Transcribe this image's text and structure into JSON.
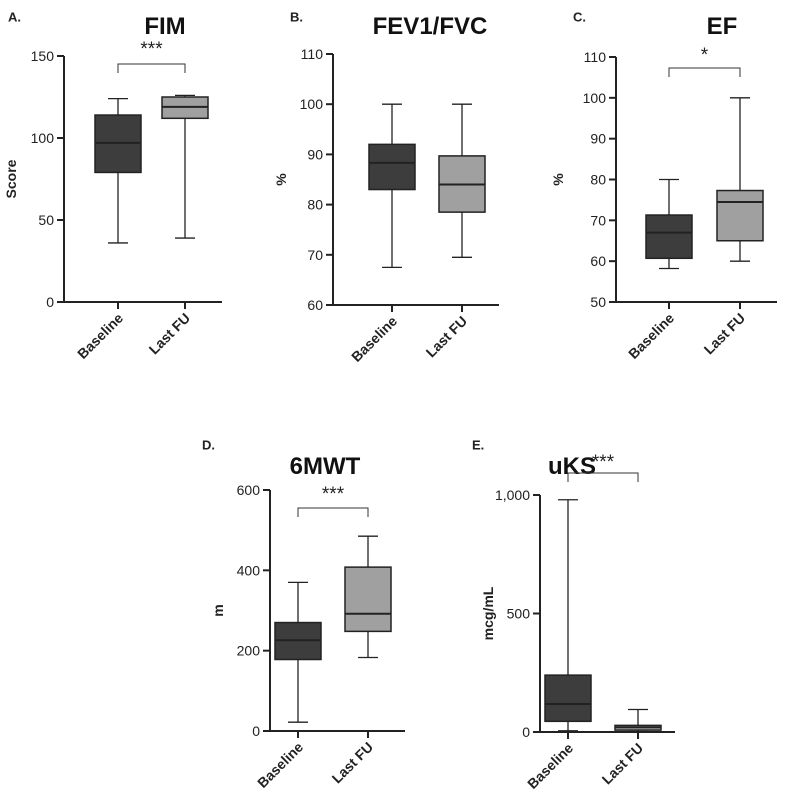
{
  "chart_data": [
    {
      "type": "box",
      "panel_label": "A.",
      "title": "FIM",
      "ylabel": "Score",
      "ylim": [
        0,
        150
      ],
      "yticks": [
        0,
        50,
        100,
        150
      ],
      "ytick_labels": [
        "0",
        "50",
        "100",
        "150"
      ],
      "categories": [
        "Baseline",
        "Last FU"
      ],
      "boxes": [
        {
          "min": 36,
          "q1": 79,
          "median": 97,
          "q3": 114,
          "max": 124,
          "color": "#3d3d3d"
        },
        {
          "min": 39,
          "q1": 112,
          "median": 119,
          "q3": 125,
          "max": 126,
          "color": "#a0a0a0"
        }
      ],
      "significance": "***"
    },
    {
      "type": "box",
      "panel_label": "B.",
      "title": "FEV1/FVC",
      "ylabel": "%",
      "ylim": [
        60,
        110
      ],
      "yticks": [
        60,
        70,
        80,
        90,
        100,
        110
      ],
      "ytick_labels": [
        "60",
        "70",
        "80",
        "90",
        "100",
        "110"
      ],
      "categories": [
        "Baseline",
        "Last FU"
      ],
      "boxes": [
        {
          "min": 67.5,
          "q1": 83,
          "median": 88.3,
          "q3": 92,
          "max": 100,
          "color": "#3d3d3d"
        },
        {
          "min": 69.5,
          "q1": 78.5,
          "median": 84,
          "q3": 89.7,
          "max": 100,
          "color": "#a0a0a0"
        }
      ],
      "significance": ""
    },
    {
      "type": "box",
      "panel_label": "C.",
      "title": "EF",
      "ylabel": "%",
      "ylim": [
        50,
        110
      ],
      "yticks": [
        50,
        60,
        70,
        80,
        90,
        100,
        110
      ],
      "ytick_labels": [
        "50",
        "60",
        "70",
        "80",
        "90",
        "100",
        "110"
      ],
      "categories": [
        "Baseline",
        "Last FU"
      ],
      "boxes": [
        {
          "min": 58.2,
          "q1": 60.7,
          "median": 67,
          "q3": 71.3,
          "max": 80,
          "color": "#3d3d3d"
        },
        {
          "min": 60,
          "q1": 65,
          "median": 74.5,
          "q3": 77.3,
          "max": 100,
          "color": "#a0a0a0"
        }
      ],
      "significance": "*"
    },
    {
      "type": "box",
      "panel_label": "D.",
      "title": "6MWT",
      "ylabel": "m",
      "ylim": [
        0,
        600
      ],
      "yticks": [
        0,
        200,
        400,
        600
      ],
      "ytick_labels": [
        "0",
        "200",
        "400",
        "600"
      ],
      "categories": [
        "Baseline",
        "Last FU"
      ],
      "boxes": [
        {
          "min": 22,
          "q1": 178,
          "median": 226,
          "q3": 270,
          "max": 370,
          "color": "#3d3d3d"
        },
        {
          "min": 183,
          "q1": 248,
          "median": 292,
          "q3": 408,
          "max": 485,
          "color": "#a0a0a0"
        }
      ],
      "significance": "***"
    },
    {
      "type": "box",
      "panel_label": "E.",
      "title": "uKS",
      "ylabel": "mcg/mL",
      "ylim": [
        0,
        1000
      ],
      "yticks": [
        0,
        500,
        1000
      ],
      "ytick_labels": [
        "0",
        "500",
        "1,000"
      ],
      "categories": [
        "Baseline",
        "Last FU"
      ],
      "boxes": [
        {
          "min": 5,
          "q1": 45,
          "median": 118,
          "q3": 240,
          "max": 980,
          "color": "#3d3d3d"
        },
        {
          "min": 2,
          "q1": 8,
          "median": 20,
          "q3": 28,
          "max": 95,
          "color": "#a0a0a0"
        }
      ],
      "significance": "***"
    }
  ]
}
